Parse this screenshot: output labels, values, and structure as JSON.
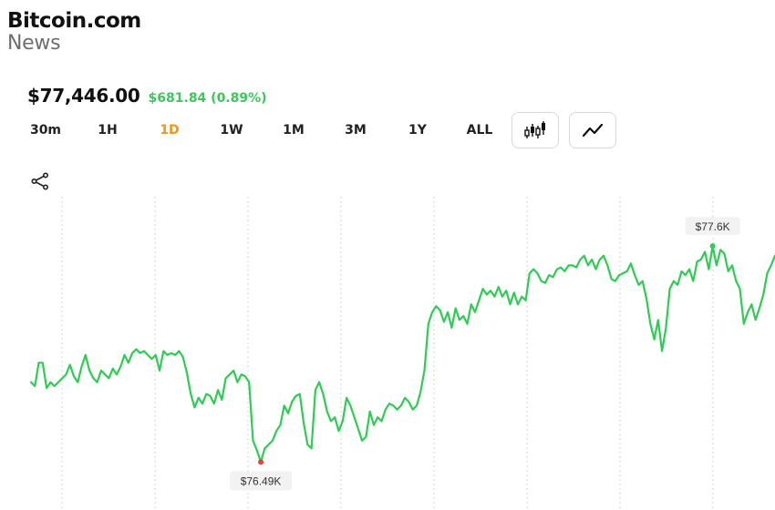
{
  "brand": {
    "name": "Bitcoin.com",
    "sub": "News"
  },
  "price": {
    "value": "$77,446.00",
    "change": "$681.84 (0.89%)",
    "change_color": "#3cc65c"
  },
  "ranges": [
    {
      "label": "30m",
      "active": false
    },
    {
      "label": "1H",
      "active": false
    },
    {
      "label": "1D",
      "active": true
    },
    {
      "label": "1W",
      "active": false
    },
    {
      "label": "1M",
      "active": false
    },
    {
      "label": "3M",
      "active": false
    },
    {
      "label": "1Y",
      "active": false
    },
    {
      "label": "ALL",
      "active": false
    }
  ],
  "chart_type_buttons": [
    {
      "icon": "candlestick-icon"
    },
    {
      "icon": "line-chart-icon"
    }
  ],
  "share_icon": "share-icon",
  "colors": {
    "line": "#2fcb55",
    "accent": "#f7931a",
    "low_marker": "#e8413c",
    "grid": "#d6d6d6"
  },
  "chart_data": {
    "type": "line",
    "title": "",
    "ylim": [
      76.3,
      77.75
    ],
    "unit": "K",
    "grid": "vertical dotted lines",
    "high_label": "$77.6K",
    "low_label": "$76.49K",
    "series": [
      {
        "values": [
          76.9,
          76.88,
          77.0,
          77.0,
          76.87,
          76.9,
          76.88,
          76.9,
          76.92,
          76.94,
          76.99,
          76.93,
          76.9,
          76.98,
          77.04,
          76.96,
          76.92,
          76.9,
          76.96,
          76.94,
          76.92,
          76.97,
          76.94,
          76.98,
          77.04,
          77.0,
          77.05,
          77.07,
          77.05,
          77.06,
          77.04,
          77.02,
          77.04,
          76.96,
          77.06,
          77.04,
          77.05,
          77.04,
          77.06,
          77.03,
          76.95,
          76.84,
          76.77,
          76.82,
          76.79,
          76.84,
          76.83,
          76.79,
          76.86,
          76.81,
          76.92,
          76.94,
          76.96,
          76.9,
          76.94,
          76.93,
          76.9,
          76.6,
          76.55,
          76.49,
          76.56,
          76.58,
          76.6,
          76.65,
          76.68,
          76.78,
          76.74,
          76.8,
          76.83,
          76.84,
          76.69,
          76.58,
          76.56,
          76.86,
          76.9,
          76.84,
          76.75,
          76.7,
          76.72,
          76.65,
          76.7,
          76.82,
          76.78,
          76.72,
          76.66,
          76.6,
          76.62,
          76.75,
          76.68,
          76.72,
          76.7,
          76.76,
          76.79,
          76.78,
          76.76,
          76.78,
          76.82,
          76.8,
          76.76,
          76.78,
          76.85,
          76.96,
          77.2,
          77.26,
          77.29,
          77.27,
          77.21,
          77.26,
          77.18,
          77.28,
          77.22,
          77.24,
          77.2,
          77.3,
          77.26,
          77.32,
          77.38,
          77.35,
          77.37,
          77.34,
          77.39,
          77.34,
          77.37,
          77.3,
          77.36,
          77.3,
          77.34,
          77.32,
          77.46,
          77.48,
          77.46,
          77.42,
          77.41,
          77.45,
          77.44,
          77.48,
          77.49,
          77.47,
          77.5,
          77.5,
          77.49,
          77.53,
          77.55,
          77.5,
          77.53,
          77.48,
          77.53,
          77.55,
          77.5,
          77.43,
          77.42,
          77.45,
          77.46,
          77.47,
          77.51,
          77.45,
          77.4,
          77.42,
          77.33,
          77.2,
          77.12,
          77.22,
          77.06,
          77.18,
          77.38,
          77.42,
          77.4,
          77.47,
          77.45,
          77.48,
          77.42,
          77.52,
          77.53,
          77.57,
          77.48,
          77.6,
          77.5,
          77.58,
          77.56,
          77.47,
          77.5,
          77.42,
          77.38,
          77.2,
          77.26,
          77.3,
          77.22,
          77.28,
          77.35,
          77.46,
          77.5,
          77.55
        ]
      }
    ]
  }
}
